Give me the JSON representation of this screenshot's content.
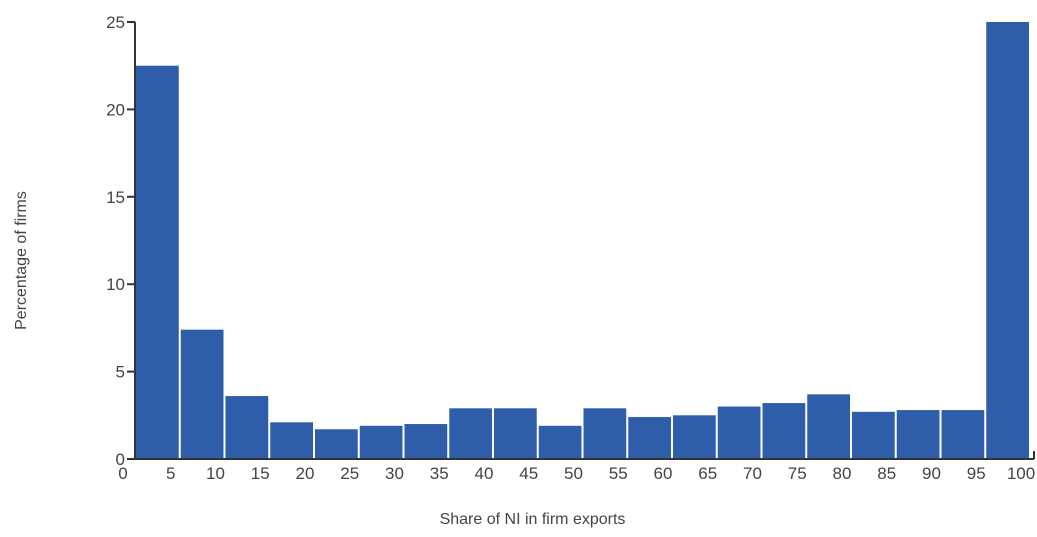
{
  "chart_data": {
    "type": "bar",
    "title": "",
    "xlabel": "Share of NI in firm exports",
    "ylabel": "Percentage of firms",
    "ylim": [
      0,
      25
    ],
    "yticks": [
      0,
      5,
      10,
      15,
      20,
      25
    ],
    "xticks": [
      0,
      5,
      10,
      15,
      20,
      25,
      30,
      35,
      40,
      45,
      50,
      55,
      60,
      65,
      70,
      75,
      80,
      85,
      90,
      95,
      100
    ],
    "categories": [
      "5",
      "10",
      "15",
      "20",
      "25",
      "30",
      "35",
      "40",
      "45",
      "50",
      "55",
      "60",
      "65",
      "70",
      "75",
      "80",
      "85",
      "90",
      "95",
      "100"
    ],
    "values": [
      22.5,
      7.4,
      3.6,
      2.1,
      1.7,
      1.9,
      2.0,
      2.9,
      2.9,
      1.9,
      2.9,
      2.4,
      2.5,
      3.0,
      3.2,
      3.7,
      2.7,
      2.8,
      2.8,
      25.0
    ],
    "colors": {
      "bar": "#2e5ea9",
      "axis": "#333333",
      "text": "#444444"
    },
    "grid": false,
    "legend": "none"
  }
}
